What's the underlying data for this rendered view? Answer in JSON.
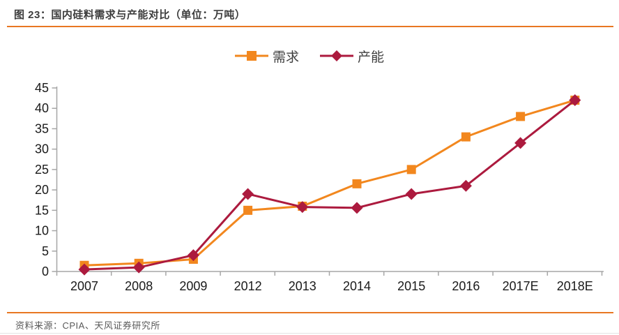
{
  "page": {
    "title": "图 23：国内硅料需求与产能对比（单位：万吨）",
    "source_note": "资料来源：CPIA、天风证券研究所"
  },
  "colors": {
    "accent_orange": "#E87722",
    "demand_orange": "#F2871E",
    "capacity_crimson": "#AC1A3E",
    "axis_gray": "#A6A6A6",
    "title_text": "#3D3D3D",
    "axis_text": "#1A1A1A",
    "source_text": "#595959"
  },
  "chart_data": {
    "type": "line",
    "title": "图 23：国内硅料需求与产能对比（单位：万吨）",
    "unit": "万吨",
    "categories": [
      "2007",
      "2008",
      "2009",
      "2012",
      "2013",
      "2014",
      "2015",
      "2016",
      "2017E",
      "2018E"
    ],
    "series": [
      {
        "name": "需求",
        "marker": "square",
        "color": "#F2871E",
        "values": [
          1.5,
          2,
          3,
          15,
          16,
          21.5,
          25,
          33,
          38,
          42
        ]
      },
      {
        "name": "产能",
        "marker": "diamond",
        "color": "#AC1A3E",
        "values": [
          0.5,
          1,
          4,
          19,
          15.8,
          15.6,
          19,
          21,
          31.5,
          42
        ]
      }
    ],
    "ylim": [
      0,
      45
    ],
    "y_ticks": [
      0,
      5,
      10,
      15,
      20,
      25,
      30,
      35,
      40,
      45
    ],
    "grid": false,
    "legend_position": "top-center"
  }
}
